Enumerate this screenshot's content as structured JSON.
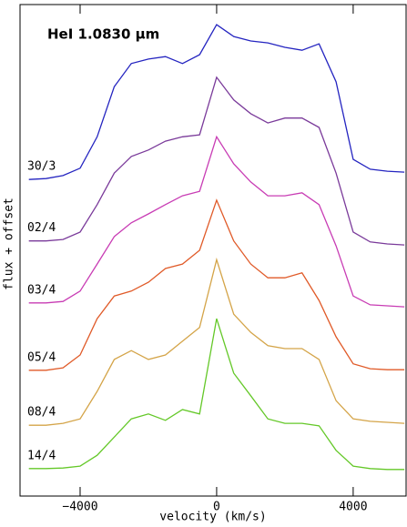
{
  "chart_data": {
    "type": "line",
    "title": "HeI 1.0830 μm",
    "x_label": "velocity (km/s)",
    "y_label": "flux + offset",
    "x": [
      -5500,
      -5000,
      -4500,
      -4000,
      -3500,
      -3000,
      -2500,
      -2000,
      -1500,
      -1000,
      -500,
      0,
      500,
      1000,
      1500,
      2000,
      2500,
      3000,
      3500,
      4000,
      4500,
      5000,
      5500
    ],
    "series": [
      {
        "name": "30/3",
        "color": "#2424c0",
        "values": [
          6.44,
          6.46,
          6.52,
          6.67,
          7.31,
          8.33,
          8.8,
          8.89,
          8.94,
          8.8,
          8.98,
          9.59,
          9.35,
          9.26,
          9.22,
          9.13,
          9.07,
          9.2,
          8.43,
          6.85,
          6.65,
          6.61,
          6.59
        ]
      },
      {
        "name": "02/4",
        "color": "#7a3a9a",
        "values": [
          5.19,
          5.19,
          5.22,
          5.37,
          5.93,
          6.57,
          6.91,
          7.04,
          7.22,
          7.31,
          7.35,
          8.52,
          8.06,
          7.78,
          7.59,
          7.69,
          7.69,
          7.5,
          6.57,
          5.37,
          5.17,
          5.13,
          5.11
        ]
      },
      {
        "name": "03/4",
        "color": "#c83cb4",
        "values": [
          3.93,
          3.93,
          3.96,
          4.17,
          4.72,
          5.28,
          5.56,
          5.74,
          5.93,
          6.11,
          6.2,
          7.31,
          6.76,
          6.39,
          6.11,
          6.11,
          6.17,
          5.93,
          5.09,
          4.07,
          3.89,
          3.87,
          3.85
        ]
      },
      {
        "name": "05/4",
        "color": "#e05a28",
        "values": [
          2.56,
          2.56,
          2.61,
          2.87,
          3.61,
          4.07,
          4.17,
          4.35,
          4.63,
          4.72,
          5.0,
          6.02,
          5.19,
          4.72,
          4.44,
          4.44,
          4.54,
          3.98,
          3.24,
          2.69,
          2.59,
          2.57,
          2.57
        ]
      },
      {
        "name": "08/4",
        "color": "#d4a448",
        "values": [
          1.44,
          1.44,
          1.48,
          1.57,
          2.13,
          2.78,
          2.96,
          2.78,
          2.87,
          3.15,
          3.43,
          4.81,
          3.7,
          3.33,
          3.06,
          3.0,
          3.0,
          2.78,
          1.94,
          1.57,
          1.52,
          1.5,
          1.48
        ]
      },
      {
        "name": "14/4",
        "color": "#64c828",
        "values": [
          0.56,
          0.56,
          0.57,
          0.61,
          0.83,
          1.2,
          1.57,
          1.67,
          1.54,
          1.76,
          1.67,
          3.61,
          2.5,
          2.04,
          1.57,
          1.48,
          1.48,
          1.43,
          0.93,
          0.61,
          0.56,
          0.54,
          0.54
        ]
      }
    ],
    "xlim": [
      -5760,
      5550
    ],
    "ylim": [
      0,
      10
    ],
    "xticks": [
      {
        "value": -4000,
        "label": "−4000"
      },
      0,
      4000
    ]
  }
}
